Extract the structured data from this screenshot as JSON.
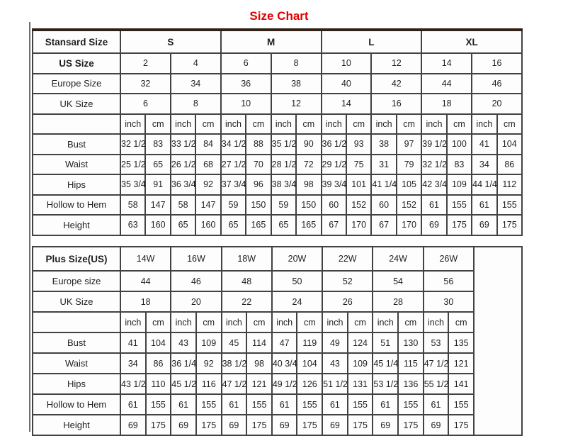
{
  "title": {
    "text": "Size Chart",
    "color": "#e20000"
  },
  "tables": [
    {
      "name": "standard-size-table",
      "rows": [
        [
          {
            "t": "Stansard Size",
            "b": 1
          },
          {
            "t": "S",
            "cs": 4,
            "b": 1
          },
          {
            "t": "M",
            "cs": 4,
            "b": 1
          },
          {
            "t": "L",
            "cs": 4,
            "b": 1
          },
          {
            "t": "XL",
            "cs": 4,
            "b": 1
          }
        ],
        [
          {
            "t": "US Size",
            "b": 1
          },
          {
            "t": "2",
            "cs": 2
          },
          {
            "t": "4",
            "cs": 2
          },
          {
            "t": "6",
            "cs": 2
          },
          {
            "t": "8",
            "cs": 2
          },
          {
            "t": "10",
            "cs": 2
          },
          {
            "t": "12",
            "cs": 2
          },
          {
            "t": "14",
            "cs": 2
          },
          {
            "t": "16",
            "cs": 2
          }
        ],
        [
          {
            "t": "Europe Size"
          },
          {
            "t": "32",
            "cs": 2
          },
          {
            "t": "34",
            "cs": 2
          },
          {
            "t": "36",
            "cs": 2
          },
          {
            "t": "38",
            "cs": 2
          },
          {
            "t": "40",
            "cs": 2
          },
          {
            "t": "42",
            "cs": 2
          },
          {
            "t": "44",
            "cs": 2
          },
          {
            "t": "46",
            "cs": 2
          }
        ],
        [
          {
            "t": "UK Size"
          },
          {
            "t": "6",
            "cs": 2
          },
          {
            "t": "8",
            "cs": 2
          },
          {
            "t": "10",
            "cs": 2
          },
          {
            "t": "12",
            "cs": 2
          },
          {
            "t": "14",
            "cs": 2
          },
          {
            "t": "16",
            "cs": 2
          },
          {
            "t": "18",
            "cs": 2
          },
          {
            "t": "20",
            "cs": 2
          }
        ],
        [
          {
            "t": ""
          },
          {
            "t": "inch"
          },
          {
            "t": "cm"
          },
          {
            "t": "inch"
          },
          {
            "t": "cm"
          },
          {
            "t": "inch"
          },
          {
            "t": "cm"
          },
          {
            "t": "inch"
          },
          {
            "t": "cm"
          },
          {
            "t": "inch"
          },
          {
            "t": "cm"
          },
          {
            "t": "inch"
          },
          {
            "t": "cm"
          },
          {
            "t": "inch"
          },
          {
            "t": "cm"
          },
          {
            "t": "inch"
          },
          {
            "t": "cm"
          }
        ],
        [
          {
            "t": "Bust"
          },
          {
            "t": "32 1/2"
          },
          {
            "t": "83"
          },
          {
            "t": "33 1/2"
          },
          {
            "t": "84"
          },
          {
            "t": "34 1/2"
          },
          {
            "t": "88"
          },
          {
            "t": "35 1/2"
          },
          {
            "t": "90"
          },
          {
            "t": "36 1/2"
          },
          {
            "t": "93"
          },
          {
            "t": "38"
          },
          {
            "t": "97"
          },
          {
            "t": "39 1/2"
          },
          {
            "t": "100"
          },
          {
            "t": "41"
          },
          {
            "t": "104"
          }
        ],
        [
          {
            "t": "Waist"
          },
          {
            "t": "25 1/2"
          },
          {
            "t": "65"
          },
          {
            "t": "26 1/2"
          },
          {
            "t": "68"
          },
          {
            "t": "27 1/2"
          },
          {
            "t": "70"
          },
          {
            "t": "28 1/2"
          },
          {
            "t": "72"
          },
          {
            "t": "29 1/2"
          },
          {
            "t": "75"
          },
          {
            "t": "31"
          },
          {
            "t": "79"
          },
          {
            "t": "32 1/2"
          },
          {
            "t": "83"
          },
          {
            "t": "34"
          },
          {
            "t": "86"
          }
        ],
        [
          {
            "t": "Hips"
          },
          {
            "t": "35 3/4"
          },
          {
            "t": "91"
          },
          {
            "t": "36 3/4"
          },
          {
            "t": "92"
          },
          {
            "t": "37 3/4"
          },
          {
            "t": "96"
          },
          {
            "t": "38 3/4"
          },
          {
            "t": "98"
          },
          {
            "t": "39 3/4"
          },
          {
            "t": "101"
          },
          {
            "t": "41 1/4"
          },
          {
            "t": "105"
          },
          {
            "t": "42 3/4"
          },
          {
            "t": "109"
          },
          {
            "t": "44 1/4"
          },
          {
            "t": "112"
          }
        ],
        [
          {
            "t": "Hollow to Hem"
          },
          {
            "t": "58"
          },
          {
            "t": "147"
          },
          {
            "t": "58"
          },
          {
            "t": "147"
          },
          {
            "t": "59"
          },
          {
            "t": "150"
          },
          {
            "t": "59"
          },
          {
            "t": "150"
          },
          {
            "t": "60"
          },
          {
            "t": "152"
          },
          {
            "t": "60"
          },
          {
            "t": "152"
          },
          {
            "t": "61"
          },
          {
            "t": "155"
          },
          {
            "t": "61"
          },
          {
            "t": "155"
          }
        ],
        [
          {
            "t": "Height"
          },
          {
            "t": "63"
          },
          {
            "t": "160"
          },
          {
            "t": "65"
          },
          {
            "t": "160"
          },
          {
            "t": "65"
          },
          {
            "t": "165"
          },
          {
            "t": "65"
          },
          {
            "t": "165"
          },
          {
            "t": "67"
          },
          {
            "t": "170"
          },
          {
            "t": "67"
          },
          {
            "t": "170"
          },
          {
            "t": "69"
          },
          {
            "t": "175"
          },
          {
            "t": "69"
          },
          {
            "t": "175"
          }
        ]
      ]
    },
    {
      "name": "plus-size-table",
      "rows": [
        [
          {
            "t": "Plus Size(US)",
            "b": 1
          },
          {
            "t": "14W",
            "cs": 2
          },
          {
            "t": "16W",
            "cs": 2
          },
          {
            "t": "18W",
            "cs": 2
          },
          {
            "t": "20W",
            "cs": 2
          },
          {
            "t": "22W",
            "cs": 2
          },
          {
            "t": "24W",
            "cs": 2
          },
          {
            "t": "26W",
            "cs": 2
          },
          {
            "t": "",
            "rs": 9
          }
        ],
        [
          {
            "t": "Europe size"
          },
          {
            "t": "44",
            "cs": 2
          },
          {
            "t": "46",
            "cs": 2
          },
          {
            "t": "48",
            "cs": 2
          },
          {
            "t": "50",
            "cs": 2
          },
          {
            "t": "52",
            "cs": 2
          },
          {
            "t": "54",
            "cs": 2
          },
          {
            "t": "56",
            "cs": 2
          }
        ],
        [
          {
            "t": "UK Size"
          },
          {
            "t": "18",
            "cs": 2
          },
          {
            "t": "20",
            "cs": 2
          },
          {
            "t": "22",
            "cs": 2
          },
          {
            "t": "24",
            "cs": 2
          },
          {
            "t": "26",
            "cs": 2
          },
          {
            "t": "28",
            "cs": 2
          },
          {
            "t": "30",
            "cs": 2
          }
        ],
        [
          {
            "t": ""
          },
          {
            "t": "inch"
          },
          {
            "t": "cm"
          },
          {
            "t": "inch"
          },
          {
            "t": "cm"
          },
          {
            "t": "inch"
          },
          {
            "t": "cm"
          },
          {
            "t": "inch"
          },
          {
            "t": "cm"
          },
          {
            "t": "inch"
          },
          {
            "t": "cm"
          },
          {
            "t": "inch"
          },
          {
            "t": "cm"
          },
          {
            "t": "inch"
          },
          {
            "t": "cm"
          }
        ],
        [
          {
            "t": "Bust"
          },
          {
            "t": "41"
          },
          {
            "t": "104"
          },
          {
            "t": "43"
          },
          {
            "t": "109"
          },
          {
            "t": "45"
          },
          {
            "t": "114"
          },
          {
            "t": "47"
          },
          {
            "t": "119"
          },
          {
            "t": "49"
          },
          {
            "t": "124"
          },
          {
            "t": "51"
          },
          {
            "t": "130"
          },
          {
            "t": "53"
          },
          {
            "t": "135"
          }
        ],
        [
          {
            "t": "Waist"
          },
          {
            "t": "34"
          },
          {
            "t": "86"
          },
          {
            "t": "36 1/4"
          },
          {
            "t": "92"
          },
          {
            "t": "38 1/2"
          },
          {
            "t": "98"
          },
          {
            "t": "40 3/4"
          },
          {
            "t": "104"
          },
          {
            "t": "43"
          },
          {
            "t": "109"
          },
          {
            "t": "45 1/4"
          },
          {
            "t": "115"
          },
          {
            "t": "47 1/2"
          },
          {
            "t": "121"
          }
        ],
        [
          {
            "t": "Hips"
          },
          {
            "t": "43 1/2"
          },
          {
            "t": "110"
          },
          {
            "t": "45 1/2"
          },
          {
            "t": "116"
          },
          {
            "t": "47 1/2"
          },
          {
            "t": "121"
          },
          {
            "t": "49 1/2"
          },
          {
            "t": "126"
          },
          {
            "t": "51 1/2"
          },
          {
            "t": "131"
          },
          {
            "t": "53 1/2"
          },
          {
            "t": "136"
          },
          {
            "t": "55 1/2"
          },
          {
            "t": "141"
          }
        ],
        [
          {
            "t": "Hollow to Hem"
          },
          {
            "t": "61"
          },
          {
            "t": "155"
          },
          {
            "t": "61"
          },
          {
            "t": "155"
          },
          {
            "t": "61"
          },
          {
            "t": "155"
          },
          {
            "t": "61"
          },
          {
            "t": "155"
          },
          {
            "t": "61"
          },
          {
            "t": "155"
          },
          {
            "t": "61"
          },
          {
            "t": "155"
          },
          {
            "t": "61"
          },
          {
            "t": "155"
          }
        ],
        [
          {
            "t": "Height"
          },
          {
            "t": "69"
          },
          {
            "t": "175"
          },
          {
            "t": "69"
          },
          {
            "t": "175"
          },
          {
            "t": "69"
          },
          {
            "t": "175"
          },
          {
            "t": "69"
          },
          {
            "t": "175"
          },
          {
            "t": "69"
          },
          {
            "t": "175"
          },
          {
            "t": "69"
          },
          {
            "t": "175"
          },
          {
            "t": "69"
          },
          {
            "t": "175"
          }
        ]
      ]
    }
  ],
  "chart_data": [
    {
      "type": "table",
      "title": "Size Chart",
      "table_label": "Stansard Size",
      "size_groups": {
        "S": [
          "2",
          "4"
        ],
        "M": [
          "6",
          "8"
        ],
        "L": [
          "10",
          "12"
        ],
        "XL": [
          "14",
          "16"
        ]
      },
      "us_sizes": [
        "2",
        "4",
        "6",
        "8",
        "10",
        "12",
        "14",
        "16"
      ],
      "europe_sizes": [
        "32",
        "34",
        "36",
        "38",
        "40",
        "42",
        "44",
        "46"
      ],
      "uk_sizes": [
        "6",
        "8",
        "10",
        "12",
        "14",
        "16",
        "18",
        "20"
      ],
      "units": [
        "inch",
        "cm"
      ],
      "measurements": {
        "Bust": {
          "inch": [
            "32 1/2",
            "33 1/2",
            "34 1/2",
            "35 1/2",
            "36 1/2",
            "38",
            "39 1/2",
            "41"
          ],
          "cm": [
            "83",
            "84",
            "88",
            "90",
            "93",
            "97",
            "100",
            "104"
          ]
        },
        "Waist": {
          "inch": [
            "25 1/2",
            "26 1/2",
            "27 1/2",
            "28 1/2",
            "29 1/2",
            "31",
            "32 1/2",
            "34"
          ],
          "cm": [
            "65",
            "68",
            "70",
            "72",
            "75",
            "79",
            "83",
            "86"
          ]
        },
        "Hips": {
          "inch": [
            "35 3/4",
            "36 3/4",
            "37 3/4",
            "38 3/4",
            "39 3/4",
            "41 1/4",
            "42 3/4",
            "44 1/4"
          ],
          "cm": [
            "91",
            "92",
            "96",
            "98",
            "101",
            "105",
            "109",
            "112"
          ]
        },
        "Hollow to Hem": {
          "inch": [
            "58",
            "58",
            "59",
            "59",
            "60",
            "60",
            "61",
            "61"
          ],
          "cm": [
            "147",
            "147",
            "150",
            "150",
            "152",
            "152",
            "155",
            "155"
          ]
        },
        "Height": {
          "inch": [
            "63",
            "65",
            "65",
            "65",
            "67",
            "67",
            "69",
            "69"
          ],
          "cm": [
            "160",
            "160",
            "165",
            "165",
            "170",
            "170",
            "175",
            "175"
          ]
        }
      }
    },
    {
      "type": "table",
      "title": "Plus Size Chart",
      "table_label": "Plus Size(US)",
      "plus_sizes": [
        "14W",
        "16W",
        "18W",
        "20W",
        "22W",
        "24W",
        "26W"
      ],
      "europe_sizes": [
        "44",
        "46",
        "48",
        "50",
        "52",
        "54",
        "56"
      ],
      "uk_sizes": [
        "18",
        "20",
        "22",
        "24",
        "26",
        "28",
        "30"
      ],
      "units": [
        "inch",
        "cm"
      ],
      "measurements": {
        "Bust": {
          "inch": [
            "41",
            "43",
            "45",
            "47",
            "49",
            "51",
            "53"
          ],
          "cm": [
            "104",
            "109",
            "114",
            "119",
            "124",
            "130",
            "135"
          ]
        },
        "Waist": {
          "inch": [
            "34",
            "36 1/4",
            "38 1/2",
            "40 3/4",
            "43",
            "45 1/4",
            "47 1/2"
          ],
          "cm": [
            "86",
            "92",
            "98",
            "104",
            "109",
            "115",
            "121"
          ]
        },
        "Hips": {
          "inch": [
            "43 1/2",
            "45 1/2",
            "47 1/2",
            "49 1/2",
            "51 1/2",
            "53 1/2",
            "55 1/2"
          ],
          "cm": [
            "110",
            "116",
            "121",
            "126",
            "131",
            "136",
            "141"
          ]
        },
        "Hollow to Hem": {
          "inch": [
            "61",
            "61",
            "61",
            "61",
            "61",
            "61",
            "61"
          ],
          "cm": [
            "155",
            "155",
            "155",
            "155",
            "155",
            "155",
            "155"
          ]
        },
        "Height": {
          "inch": [
            "69",
            "69",
            "69",
            "69",
            "69",
            "69",
            "69"
          ],
          "cm": [
            "175",
            "175",
            "175",
            "175",
            "175",
            "175",
            "175"
          ]
        }
      }
    }
  ]
}
